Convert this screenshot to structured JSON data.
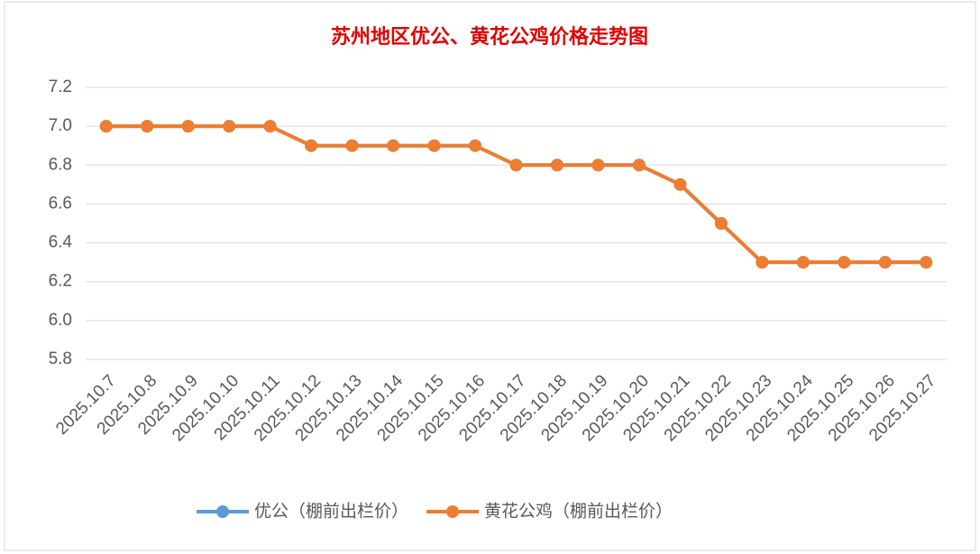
{
  "chart_data": {
    "type": "line",
    "title": "苏州地区优公、黄花公鸡价格走势图",
    "categories": [
      "2025.10.7",
      "2025.10.8",
      "2025.10.9",
      "2025.10.10",
      "2025.10.11",
      "2025.10.12",
      "2025.10.13",
      "2025.10.14",
      "2025.10.15",
      "2025.10.16",
      "2025.10.17",
      "2025.10.18",
      "2025.10.19",
      "2025.10.20",
      "2025.10.21",
      "2025.10.22",
      "2025.10.23",
      "2025.10.24",
      "2025.10.25",
      "2025.10.26",
      "2025.10.27"
    ],
    "series": [
      {
        "name": "优公（棚前出栏价）",
        "color": "#5b9bd5",
        "values": [
          7.0,
          7.0,
          7.0,
          7.0,
          7.0,
          6.9,
          6.9,
          6.9,
          6.9,
          6.9,
          6.8,
          6.8,
          6.8,
          6.8,
          6.7,
          6.5,
          6.3,
          6.3,
          6.3,
          6.3,
          6.3
        ]
      },
      {
        "name": "黄花公鸡（棚前出栏价）",
        "color": "#ed7d31",
        "values": [
          7.0,
          7.0,
          7.0,
          7.0,
          7.0,
          6.9,
          6.9,
          6.9,
          6.9,
          6.9,
          6.8,
          6.8,
          6.8,
          6.8,
          6.7,
          6.5,
          6.3,
          6.3,
          6.3,
          6.3,
          6.3
        ]
      }
    ],
    "ylim": [
      5.8,
      7.2
    ],
    "yticks": [
      5.8,
      {
        "value": 6.0,
        "label": "6.0"
      },
      6.2,
      6.4,
      6.6,
      6.8,
      {
        "value": 7.0,
        "label": "7.0"
      },
      7.2
    ],
    "grid": true,
    "legend": "bottom"
  }
}
